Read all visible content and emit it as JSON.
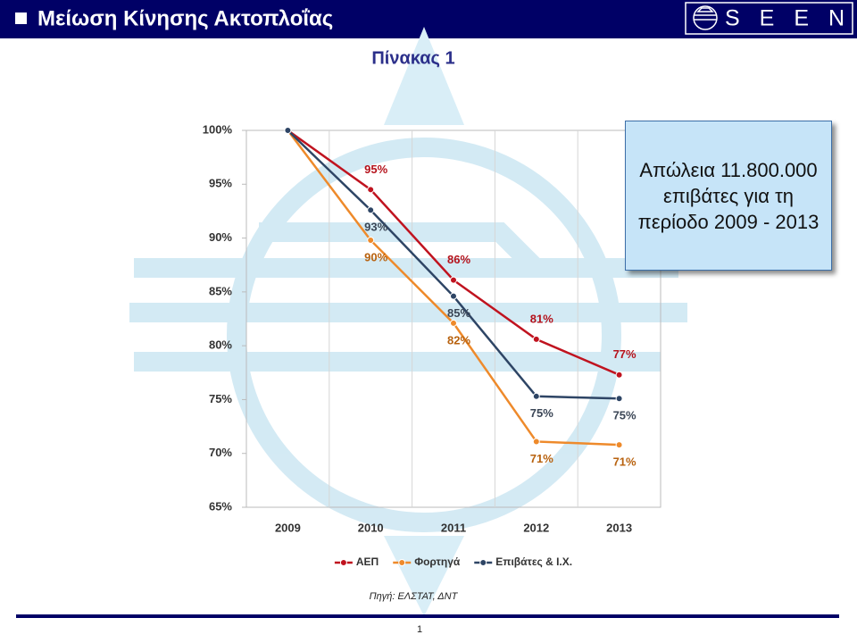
{
  "header": {
    "title": "Μείωση Κίνησης Ακτοπλοΐας",
    "logo": "SEEN"
  },
  "chart_data": {
    "type": "line",
    "title": "Πίνακας 1",
    "categories": [
      "2009",
      "2010",
      "2011",
      "2012",
      "2013"
    ],
    "series": [
      {
        "name": "ΑΕΠ",
        "color": "#c0131f",
        "label_color": "#b5121b",
        "values": [
          100,
          94.5,
          86.1,
          80.6,
          77.3
        ],
        "value_labels": [
          null,
          "95%",
          "86%",
          "81%",
          "77%"
        ]
      },
      {
        "name": "Φορτηγά",
        "color": "#ee8a2b",
        "label_color": "#b8620f",
        "values": [
          100,
          89.8,
          82.1,
          71.1,
          70.8
        ],
        "value_labels": [
          null,
          "90%",
          "82%",
          "71%",
          "71%"
        ]
      },
      {
        "name": "Επιβάτες & Ι.Χ.",
        "color": "#2e4565",
        "label_color": "#3b4656",
        "values": [
          100,
          92.6,
          84.6,
          75.3,
          75.1
        ],
        "value_labels": [
          null,
          "93%",
          "85%",
          "75%",
          "75%"
        ]
      }
    ],
    "ylim": [
      65,
      100
    ],
    "yticks": [
      {
        "value": 65,
        "label": "65%"
      },
      {
        "value": 70,
        "label": "70%"
      },
      {
        "value": 75,
        "label": "75%"
      },
      {
        "value": 80,
        "label": "80%"
      },
      {
        "value": 85,
        "label": "85%"
      },
      {
        "value": 90,
        "label": "90%"
      },
      {
        "value": 95,
        "label": "95%"
      },
      {
        "value": 100,
        "label": "100%"
      }
    ],
    "legend": "bottom",
    "annotation": "Απώλεια 11.800.000 επιβάτες για τη περίοδο 2009 - 2013"
  },
  "footer": {
    "source": "Πηγή: ΕΛΣΤΑΤ, ΔΝΤ",
    "page": "1"
  }
}
